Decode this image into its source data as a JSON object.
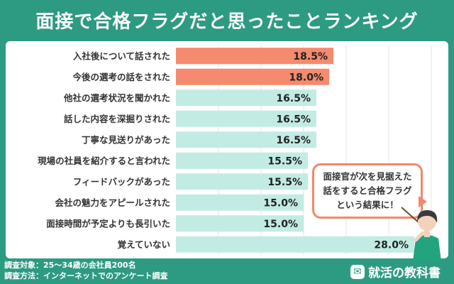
{
  "title": "面接で合格フラグだと思ったことランキング",
  "callout": {
    "line1": "面接官が次を見据えた",
    "line2": "話をすると合格フラグ",
    "line3": "という結果に！"
  },
  "footer": {
    "target": "調査対象：25～34歳の会社員200名",
    "method": "調査方法：インターネットでのアンケート調査"
  },
  "logo": {
    "text": "就活の教科書",
    "icon": "logo-mark-icon"
  },
  "colors": {
    "background": "#2d9a82",
    "highlight_bar": "#f48a6e",
    "normal_bar": "#c2ebe4",
    "callout_border": "#f0886a"
  },
  "chart_data": {
    "type": "bar",
    "orientation": "horizontal",
    "categories": [
      "入社後について話された",
      "今後の選考の話をされた",
      "他社の選考状況を聞かれた",
      "話した内容を深掘りされた",
      "丁寧な見送りがあった",
      "現場の社員を紹介すると言われた",
      "フィードバックがあった",
      "会社の魅力をアピールされた",
      "面接時間が予定よりも長引いた",
      "覚えていない"
    ],
    "values": [
      18.5,
      18.0,
      16.5,
      16.5,
      16.5,
      15.5,
      15.5,
      15.0,
      15.0,
      28.0
    ],
    "labels": [
      "18.5%",
      "18.0%",
      "16.5%",
      "16.5%",
      "16.5%",
      "15.5%",
      "15.5%",
      "15.0%",
      "15.0%",
      "28.0%"
    ],
    "highlight": [
      true,
      true,
      false,
      false,
      false,
      false,
      false,
      false,
      false,
      false
    ],
    "unit": "%",
    "grid": true,
    "xlim": [
      0,
      30
    ]
  }
}
